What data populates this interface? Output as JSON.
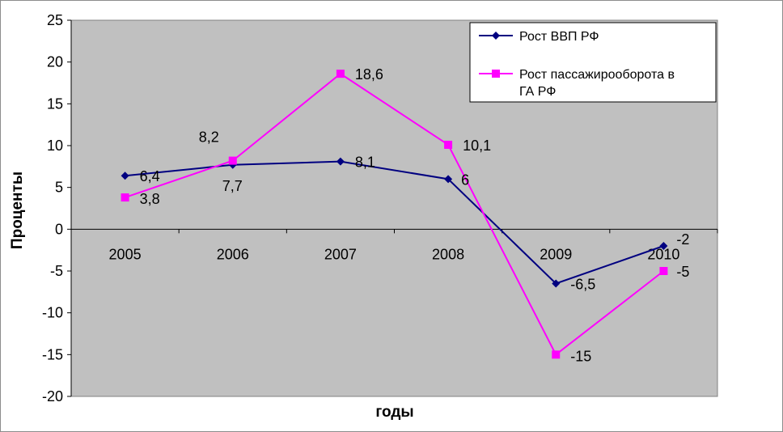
{
  "chart_data": {
    "type": "line",
    "title": "",
    "xlabel": "годы",
    "ylabel": "Проценты",
    "categories": [
      "2005",
      "2006",
      "2007",
      "2008",
      "2009",
      "2010"
    ],
    "ylim": [
      -20,
      25
    ],
    "yticks": [
      "25",
      "20",
      "15",
      "10",
      "5",
      "0",
      "-5",
      "-10",
      "-15",
      "-20"
    ],
    "grid": false,
    "legend_position": "top-right",
    "plot_background": "#c0c0c0",
    "series": [
      {
        "name": "Рост ВВП РФ",
        "values": [
          6.4,
          7.7,
          8.1,
          6,
          -6.5,
          -2
        ],
        "labels": [
          "6,4",
          "7,7",
          "8,1",
          "6",
          "-6,5",
          "-2"
        ],
        "color": "#000080",
        "marker": "diamond"
      },
      {
        "name": "Рост пассажирооборота в ГА РФ",
        "legend_lines": [
          "Рост пассажирооборота в",
          "ГА РФ"
        ],
        "values": [
          3.8,
          8.2,
          18.6,
          10.1,
          -15,
          -5
        ],
        "labels": [
          "3,8",
          "8,2",
          "18,6",
          "10,1",
          "-15",
          "-5"
        ],
        "color": "#ff00ff",
        "marker": "square"
      }
    ]
  }
}
